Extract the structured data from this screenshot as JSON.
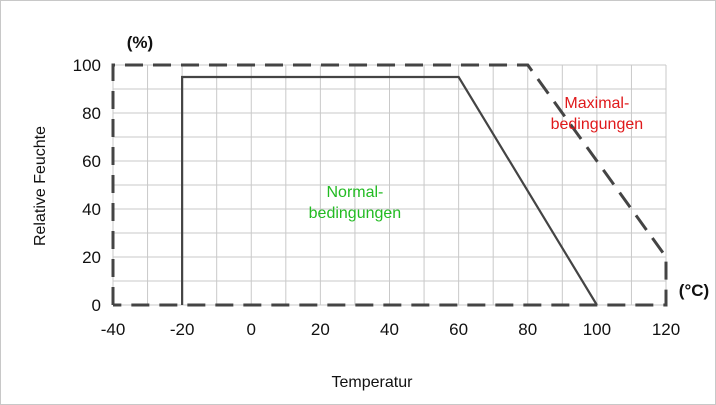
{
  "chart_data": {
    "type": "line",
    "xlabel": "Temperatur",
    "ylabel": "Relative Feuchte",
    "x_unit": "(°C)",
    "y_unit": "(%)",
    "xlim": [
      -40,
      120
    ],
    "ylim": [
      0,
      100
    ],
    "x_ticks": [
      -40,
      -20,
      0,
      20,
      40,
      60,
      80,
      100,
      120
    ],
    "y_ticks": [
      0,
      20,
      40,
      60,
      80,
      100
    ],
    "grid": true,
    "series": [
      {
        "name": "Normalbedingungen",
        "style": "solid",
        "color": "#444444",
        "points": [
          [
            -20,
            0
          ],
          [
            -20,
            95
          ],
          [
            60,
            95
          ],
          [
            100,
            0
          ]
        ]
      },
      {
        "name": "Maximalbedingungen",
        "style": "dashed",
        "color": "#444444",
        "points": [
          [
            -40,
            0
          ],
          [
            -40,
            100
          ],
          [
            80,
            100
          ],
          [
            120,
            20
          ],
          [
            120,
            0
          ],
          [
            -40,
            0
          ]
        ]
      }
    ],
    "annotations": [
      {
        "text": [
          "Normal-",
          "bedingungen"
        ],
        "x": 30,
        "y": 45,
        "color": "#22bb22"
      },
      {
        "text": [
          "Maximal-",
          "bedingungen"
        ],
        "x": 100,
        "y": 82,
        "color": "#e0191b"
      }
    ]
  }
}
